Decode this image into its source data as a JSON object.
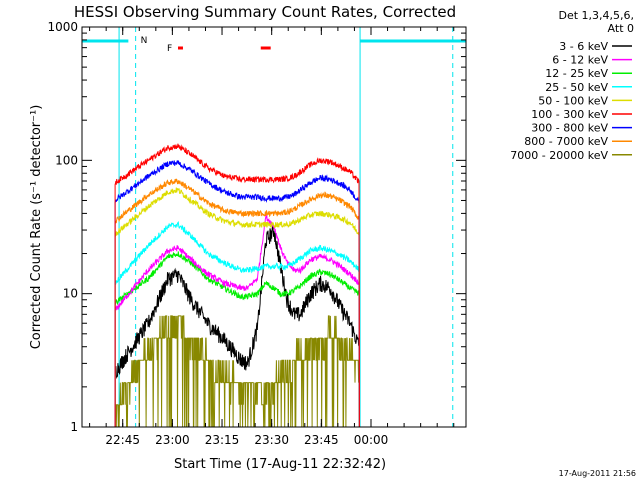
{
  "chart_data": {
    "type": "line",
    "title": "HESSI Observing Summary Count Rates, Corrected",
    "xlabel": "Start Time (17-Aug-11 22:32:42)",
    "ylabel": "Corrected Count Rate (s⁻¹ detector⁻¹)",
    "yscale": "log",
    "ylim": [
      1,
      1000
    ],
    "xlim_minutes_after_start": [
      0,
      116
    ],
    "x_ticks": [
      {
        "label": "22:45",
        "t": 12.3
      },
      {
        "label": "23:00",
        "t": 27.3
      },
      {
        "label": "23:15",
        "t": 42.3
      },
      {
        "label": "23:30",
        "t": 57.3
      },
      {
        "label": "23:45",
        "t": 72.3
      },
      {
        "label": "00:00",
        "t": 87.3
      }
    ],
    "y_ticks": [
      {
        "label": "1",
        "v": 1
      },
      {
        "label": "10",
        "v": 10
      },
      {
        "label": "100",
        "v": 100
      },
      {
        "label": "1000",
        "v": 1000
      }
    ],
    "legend_header": [
      "Det 1,3,4,5,6,",
      "Att 0"
    ],
    "legend_position": "outside-right",
    "series": [
      {
        "name": "3 - 6 keV",
        "color": "#000000",
        "points": [
          [
            10,
            2.6
          ],
          [
            20,
            6
          ],
          [
            26,
            13
          ],
          [
            29,
            14
          ],
          [
            33,
            9
          ],
          [
            38,
            6
          ],
          [
            43,
            4.5
          ],
          [
            48,
            3.2
          ],
          [
            50,
            3
          ],
          [
            53,
            5.5
          ],
          [
            55.5,
            25
          ],
          [
            58,
            30
          ],
          [
            60,
            16
          ],
          [
            62,
            9
          ],
          [
            64,
            7
          ],
          [
            66,
            7
          ],
          [
            69,
            10
          ],
          [
            72,
            12
          ],
          [
            75,
            11
          ],
          [
            78,
            8
          ],
          [
            81,
            6
          ],
          [
            83.8,
            4
          ]
        ]
      },
      {
        "name": "6 - 12 keV",
        "color": "#ff00ff",
        "points": [
          [
            10,
            7.5
          ],
          [
            20,
            15
          ],
          [
            26,
            21
          ],
          [
            29,
            22
          ],
          [
            33,
            18
          ],
          [
            38,
            14
          ],
          [
            43,
            12
          ],
          [
            48,
            11
          ],
          [
            50,
            11
          ],
          [
            53,
            13
          ],
          [
            55.5,
            38
          ],
          [
            58,
            32
          ],
          [
            60,
            22
          ],
          [
            62,
            17
          ],
          [
            64,
            15
          ],
          [
            66,
            15
          ],
          [
            69,
            18
          ],
          [
            72,
            19
          ],
          [
            75,
            18
          ],
          [
            78,
            16
          ],
          [
            81,
            14
          ],
          [
            83.8,
            12
          ]
        ]
      },
      {
        "name": "12 - 25 keV",
        "color": "#00ee00",
        "points": [
          [
            10,
            8.5
          ],
          [
            20,
            13
          ],
          [
            26,
            19
          ],
          [
            29,
            20
          ],
          [
            33,
            17
          ],
          [
            38,
            13
          ],
          [
            43,
            11
          ],
          [
            48,
            9.5
          ],
          [
            50,
            9.5
          ],
          [
            53,
            10
          ],
          [
            55.5,
            12
          ],
          [
            58,
            11
          ],
          [
            60,
            10
          ],
          [
            62,
            10
          ],
          [
            64,
            10.5
          ],
          [
            66,
            11.5
          ],
          [
            69,
            13.5
          ],
          [
            72,
            14.5
          ],
          [
            75,
            14
          ],
          [
            78,
            12.5
          ],
          [
            81,
            11
          ],
          [
            83.8,
            10
          ]
        ]
      },
      {
        "name": "25 - 50 keV",
        "color": "#00ffff",
        "points": [
          [
            10,
            12
          ],
          [
            20,
            23
          ],
          [
            26,
            32
          ],
          [
            29,
            33
          ],
          [
            33,
            27
          ],
          [
            38,
            20
          ],
          [
            43,
            17
          ],
          [
            48,
            15
          ],
          [
            50,
            15
          ],
          [
            53,
            15.5
          ],
          [
            55.5,
            16
          ],
          [
            58,
            16
          ],
          [
            60,
            16
          ],
          [
            62,
            16
          ],
          [
            64,
            17
          ],
          [
            66,
            18.5
          ],
          [
            69,
            21
          ],
          [
            72,
            22
          ],
          [
            75,
            21
          ],
          [
            78,
            19.5
          ],
          [
            81,
            17.5
          ],
          [
            83.8,
            15
          ]
        ]
      },
      {
        "name": "50 - 100 keV",
        "color": "#dddd00",
        "points": [
          [
            10,
            28
          ],
          [
            20,
            45
          ],
          [
            26,
            58
          ],
          [
            29,
            60
          ],
          [
            33,
            50
          ],
          [
            38,
            40
          ],
          [
            43,
            35
          ],
          [
            48,
            33
          ],
          [
            50,
            33
          ],
          [
            53,
            33
          ],
          [
            55.5,
            33
          ],
          [
            58,
            33
          ],
          [
            60,
            33
          ],
          [
            62,
            33
          ],
          [
            64,
            34
          ],
          [
            66,
            36
          ],
          [
            69,
            39
          ],
          [
            72,
            40
          ],
          [
            75,
            39
          ],
          [
            78,
            37
          ],
          [
            81,
            34
          ],
          [
            83.8,
            28
          ]
        ]
      },
      {
        "name": "100 - 300 keV",
        "color": "#ff0000",
        "points": [
          [
            10,
            68
          ],
          [
            20,
            100
          ],
          [
            26,
            125
          ],
          [
            29,
            128
          ],
          [
            33,
            110
          ],
          [
            38,
            88
          ],
          [
            43,
            76
          ],
          [
            48,
            72
          ],
          [
            50,
            72
          ],
          [
            53,
            72
          ],
          [
            55.5,
            72
          ],
          [
            58,
            72
          ],
          [
            60,
            72
          ],
          [
            62,
            73
          ],
          [
            64,
            76
          ],
          [
            66,
            82
          ],
          [
            69,
            93
          ],
          [
            72,
            100
          ],
          [
            75,
            98
          ],
          [
            78,
            90
          ],
          [
            81,
            82
          ],
          [
            83.8,
            68
          ]
        ]
      },
      {
        "name": "300 - 800 keV",
        "color": "#0000ff",
        "points": [
          [
            10,
            50
          ],
          [
            20,
            76
          ],
          [
            26,
            95
          ],
          [
            29,
            96
          ],
          [
            33,
            84
          ],
          [
            38,
            68
          ],
          [
            43,
            58
          ],
          [
            48,
            53
          ],
          [
            50,
            53
          ],
          [
            53,
            53
          ],
          [
            55.5,
            52
          ],
          [
            58,
            52
          ],
          [
            60,
            52
          ],
          [
            62,
            53
          ],
          [
            64,
            55
          ],
          [
            66,
            60
          ],
          [
            69,
            68
          ],
          [
            72,
            74
          ],
          [
            75,
            72
          ],
          [
            78,
            67
          ],
          [
            81,
            60
          ],
          [
            83.8,
            48
          ]
        ]
      },
      {
        "name": "800 - 7000 keV",
        "color": "#ff8800",
        "points": [
          [
            10,
            35
          ],
          [
            20,
            55
          ],
          [
            26,
            68
          ],
          [
            29,
            70
          ],
          [
            33,
            60
          ],
          [
            38,
            48
          ],
          [
            43,
            42
          ],
          [
            48,
            40
          ],
          [
            50,
            40
          ],
          [
            53,
            40
          ],
          [
            55.5,
            40
          ],
          [
            58,
            40
          ],
          [
            60,
            40
          ],
          [
            62,
            41
          ],
          [
            64,
            43
          ],
          [
            66,
            46
          ],
          [
            69,
            51
          ],
          [
            72,
            55
          ],
          [
            75,
            54
          ],
          [
            78,
            50
          ],
          [
            81,
            45
          ],
          [
            83.8,
            36
          ]
        ]
      },
      {
        "name": "7000 - 20000 keV",
        "color": "#888800",
        "points": [
          [
            10,
            1.2
          ],
          [
            13,
            1.8
          ],
          [
            17,
            3
          ],
          [
            21,
            4
          ],
          [
            24,
            5.3
          ],
          [
            28,
            5.5
          ],
          [
            31,
            5.3
          ],
          [
            35,
            4
          ],
          [
            39,
            3
          ],
          [
            43,
            2.3
          ],
          [
            48,
            2
          ],
          [
            52,
            2
          ],
          [
            57,
            2
          ],
          [
            61,
            2.5
          ],
          [
            65,
            3.2
          ],
          [
            69,
            3.8
          ],
          [
            72,
            4.5
          ],
          [
            76,
            4.8
          ],
          [
            79,
            4.2
          ],
          [
            82,
            3.2
          ],
          [
            83.8,
            2.5
          ]
        ]
      }
    ],
    "annotations": {
      "flare_label": "F",
      "night_label": "N",
      "flare_flag_intervals": [
        [
          29,
          30.5
        ],
        [
          54,
          57
        ]
      ],
      "saa_intervals": [
        [
          0,
          14
        ],
        [
          84,
          116
        ]
      ],
      "saa_dashed_lines": [
        16.2,
        112
      ],
      "saa_solid_lines": [
        11.2,
        84
      ]
    },
    "grid": false
  },
  "footer": {
    "date_stamp": "17-Aug-2011 21:56"
  }
}
